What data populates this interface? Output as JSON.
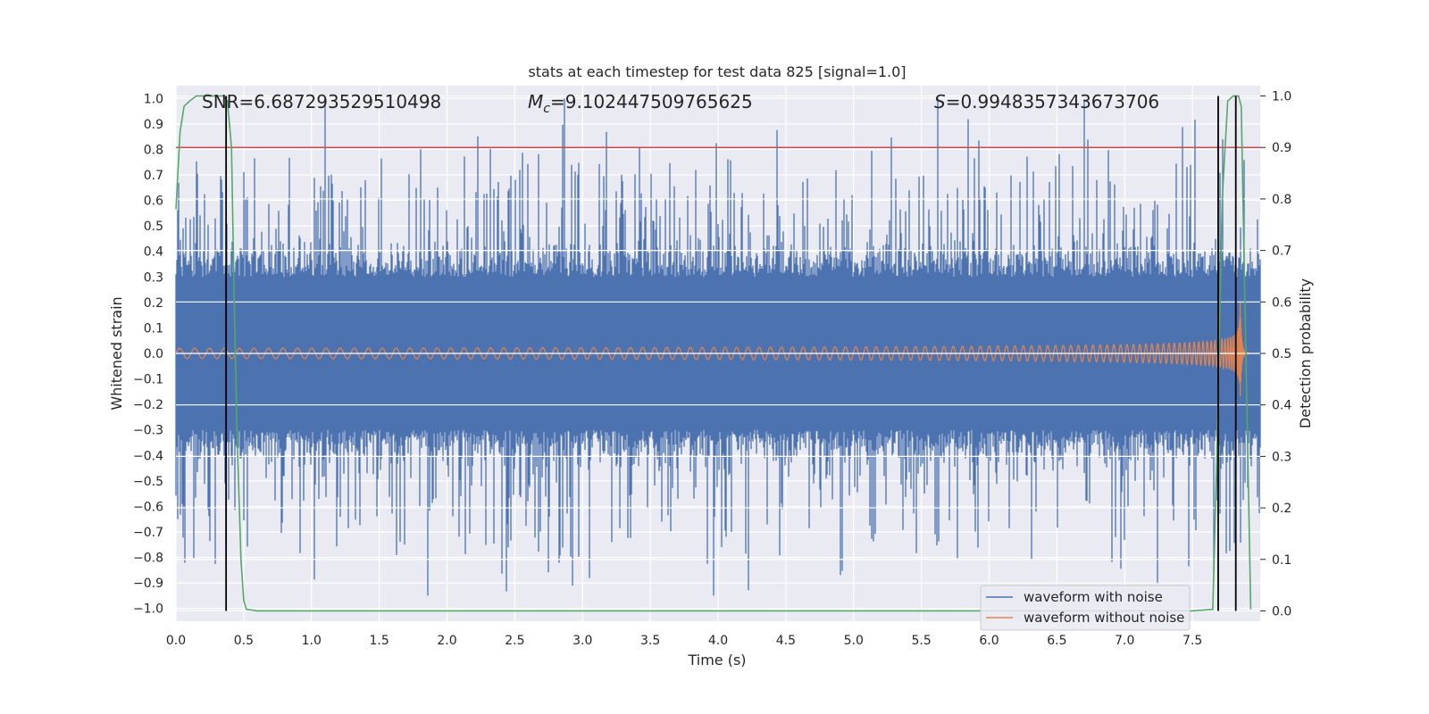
{
  "chart_data": {
    "type": "line",
    "title": "stats at each timestep for test data 825 [signal=1.0]",
    "xlabel": "Time (s)",
    "ylabel": "Whitened strain",
    "ylabel_right": "Detection probability",
    "xlim": [
      0.0,
      8.0
    ],
    "ylim": [
      -1.05,
      1.05
    ],
    "ylim_right": [
      -0.02,
      1.02
    ],
    "x_ticks": [
      "0.0",
      "0.5",
      "1.0",
      "1.5",
      "2.0",
      "2.5",
      "3.0",
      "3.5",
      "4.0",
      "4.5",
      "5.0",
      "5.5",
      "6.0",
      "6.5",
      "7.0",
      "7.5"
    ],
    "y_ticks": [
      "1.0",
      "0.9",
      "0.8",
      "0.7",
      "0.6",
      "0.5",
      "0.4",
      "0.3",
      "0.2",
      "0.1",
      "0.0",
      "−0.1",
      "−0.2",
      "−0.3",
      "−0.4",
      "−0.5",
      "−0.6",
      "−0.7",
      "−0.8",
      "−0.9",
      "−1.0"
    ],
    "y_ticks_right": [
      "1.0",
      "0.9",
      "0.8",
      "0.7",
      "0.6",
      "0.5",
      "0.4",
      "0.3",
      "0.2",
      "0.1",
      "0.0"
    ],
    "grid": true,
    "legend_position": "bottom-right",
    "annotations": {
      "snr": "SNR=6.687293529510498",
      "mc_symbol": "M",
      "mc_subscript": "c",
      "mc_value": "=9.102447509765625",
      "s_symbol": "S",
      "s_value": "=0.9948357343673706"
    },
    "series": [
      {
        "name": "waveform with noise",
        "color": "#4c72b0",
        "sample_rate_hz": 2048,
        "envelope_typical": [
          -0.35,
          0.35
        ],
        "peak_extremes": [
          -0.95,
          1.0
        ]
      },
      {
        "name": "waveform without noise",
        "color": "#dd8452",
        "note": "chirp signal, amplitude growing toward merger near t=7.85 s",
        "amplitude_start": 0.02,
        "amplitude_peak": 0.28,
        "merger_time": 7.85
      },
      {
        "name": "detection probability",
        "axis": "right",
        "color": "#55a868",
        "x": [
          0.0,
          0.03,
          0.06,
          0.1,
          0.15,
          0.2,
          0.3,
          0.35,
          0.38,
          0.41,
          0.43,
          0.45,
          0.48,
          0.5,
          0.52,
          0.6,
          1.0,
          2.0,
          3.0,
          4.0,
          5.0,
          6.0,
          7.0,
          7.5,
          7.65,
          7.68,
          7.72,
          7.76,
          7.8,
          7.84,
          7.86,
          7.88,
          7.93
        ],
        "y": [
          0.78,
          0.93,
          0.98,
          0.99,
          1.0,
          1.0,
          1.0,
          1.0,
          0.99,
          0.9,
          0.6,
          0.35,
          0.1,
          0.02,
          0.003,
          0.0,
          0.0,
          0.0,
          0.0,
          0.0,
          0.0,
          0.0,
          0.0,
          0.0,
          0.003,
          0.3,
          0.8,
          0.99,
          1.0,
          1.0,
          0.98,
          0.7,
          0.003
        ]
      }
    ],
    "threshold_line": {
      "value": 0.9,
      "axis": "right",
      "color": "#c44e52"
    },
    "event_markers": [
      {
        "time": 0.37,
        "label_hidden": true
      },
      {
        "time": 7.69,
        "label_hidden": true
      },
      {
        "time": 7.82,
        "label_hidden": true
      }
    ]
  }
}
